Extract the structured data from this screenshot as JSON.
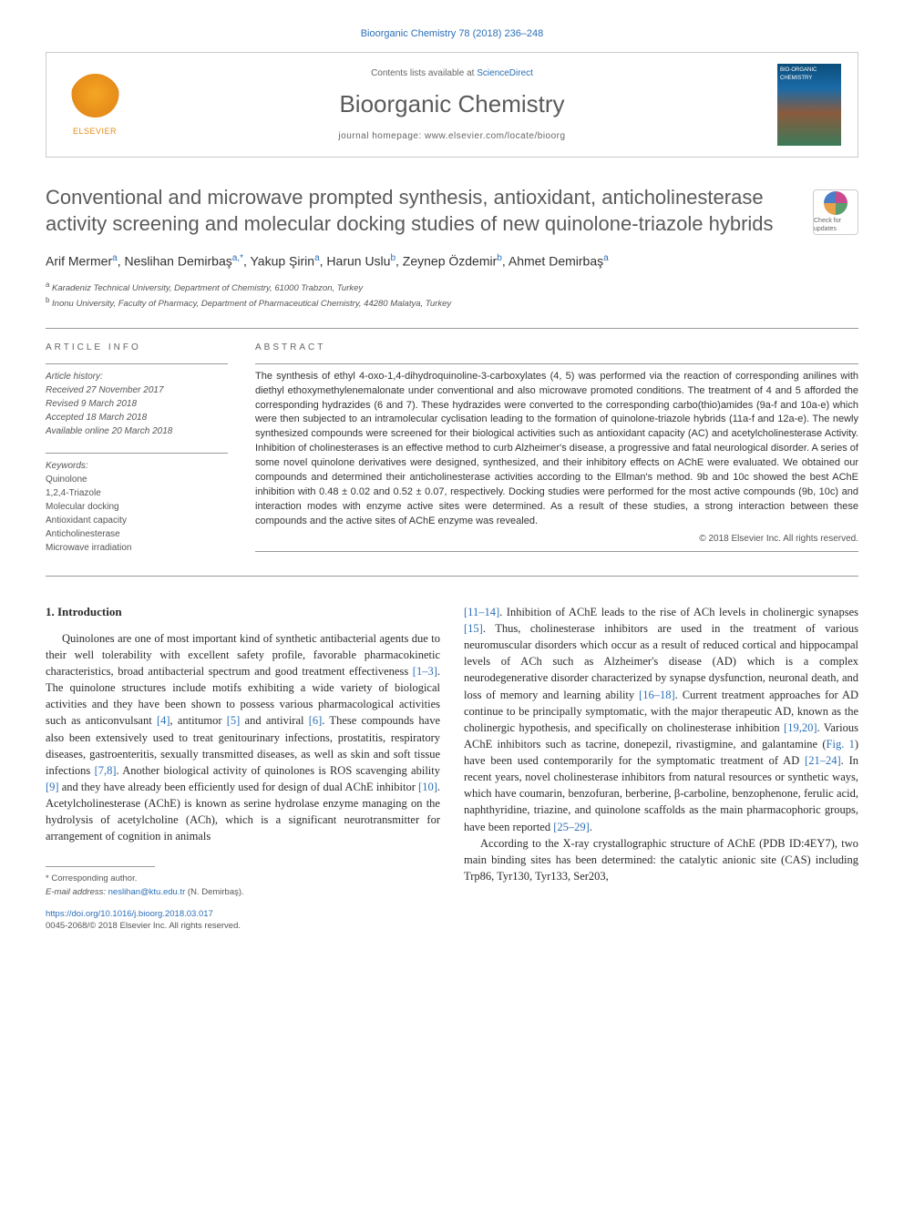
{
  "journal_ref": "Bioorganic Chemistry 78 (2018) 236–248",
  "header": {
    "contents_prefix": "Contents lists available at ",
    "contents_link": "ScienceDirect",
    "journal_name": "Bioorganic Chemistry",
    "homepage_prefix": "journal homepage: ",
    "homepage_url": "www.elsevier.com/locate/bioorg",
    "publisher": "ELSEVIER",
    "cover_text": "BIO-ORGANIC CHEMISTRY"
  },
  "check_badge": "Check for updates",
  "title": "Conventional and microwave prompted synthesis, antioxidant, anticholinesterase activity screening and molecular docking studies of new quinolone-triazole hybrids",
  "authors_html": "Arif Mermer<sup>a</sup>, Neslihan Demirbaş<sup>a,*</sup>, Yakup Şirin<sup>a</sup>, Harun Uslu<sup>b</sup>, Zeynep Özdemir<sup>b</sup>, Ahmet Demirbaş<sup>a</sup>",
  "affiliations": {
    "a": "Karadeniz Technical University, Department of Chemistry, 61000 Trabzon, Turkey",
    "b": "Inonu University, Faculty of Pharmacy, Department of Pharmaceutical Chemistry, 44280 Malatya, Turkey"
  },
  "info": {
    "heading": "ARTICLE INFO",
    "history_label": "Article history:",
    "received": "Received 27 November 2017",
    "revised": "Revised 9 March 2018",
    "accepted": "Accepted 18 March 2018",
    "online": "Available online 20 March 2018",
    "keywords_label": "Keywords:",
    "keywords": [
      "Quinolone",
      "1,2,4-Triazole",
      "Molecular docking",
      "Antioxidant capacity",
      "Anticholinesterase",
      "Microwave irradiation"
    ]
  },
  "abstract": {
    "heading": "ABSTRACT",
    "text": "The synthesis of ethyl 4-oxo-1,4-dihydroquinoline-3-carboxylates (4, 5) was performed via the reaction of corresponding anilines with diethyl ethoxymethylenemalonate under conventional and also microwave promoted conditions. The treatment of 4 and 5 afforded the corresponding hydrazides (6 and 7). These hydrazides were converted to the corresponding carbo(thio)amides (9a-f and 10a-e) which were then subjected to an intramolecular cyclisation leading to the formation of quinolone-triazole hybrids (11a-f and 12a-e). The newly synthesized compounds were screened for their biological activities such as antioxidant capacity (AC) and acetylcholinesterase Activity. Inhibition of cholinesterases is an effective method to curb Alzheimer's disease, a progressive and fatal neurological disorder. A series of some novel quinolone derivatives were designed, synthesized, and their inhibitory effects on AChE were evaluated. We obtained our compounds and determined their anticholinesterase activities according to the Ellman's method. 9b and 10c showed the best AChE inhibition with 0.48 ± 0.02 and 0.52 ± 0.07, respectively. Docking studies were performed for the most active compounds (9b, 10c) and interaction modes with enzyme active sites were determined. As a result of these studies, a strong interaction between these compounds and the active sites of AChE enzyme was revealed.",
    "copyright": "© 2018 Elsevier Inc. All rights reserved."
  },
  "body": {
    "section_heading": "1. Introduction",
    "col1_p1": "Quinolones are one of most important kind of synthetic antibacterial agents due to their well tolerability with excellent safety profile, favorable pharmacokinetic characteristics, broad antibacterial spectrum and good treatment effectiveness [1–3]. The quinolone structures include motifs exhibiting a wide variety of biological activities and they have been shown to possess various pharmacological activities such as anticonvulsant [4], antitumor [5] and antiviral [6]. These compounds have also been extensively used to treat genitourinary infections, prostatitis, respiratory diseases, gastroenteritis, sexually transmitted diseases, as well as skin and soft tissue infections [7,8]. Another biological activity of quinolones is ROS scavenging ability [9] and they have already been efficiently used for design of dual AChE inhibitor [10]. Acetylcholinesterase (AChE) is known as serine hydrolase enzyme managing on the hydrolysis of acetylcholine (ACh), which is a significant neurotransmitter for arrangement of cognition in animals",
    "col2_p1": "[11–14]. Inhibition of AChE leads to the rise of ACh levels in cholinergic synapses [15]. Thus, cholinesterase inhibitors are used in the treatment of various neuromuscular disorders which occur as a result of reduced cortical and hippocampal levels of ACh such as Alzheimer's disease (AD) which is a complex neurodegenerative disorder characterized by synapse dysfunction, neuronal death, and loss of memory and learning ability [16–18]. Current treatment approaches for AD continue to be principally symptomatic, with the major therapeutic AD, known as the cholinergic hypothesis, and specifically on cholinesterase inhibition [19,20]. Various AChE inhibitors such as tacrine, donepezil, rivastigmine, and galantamine (Fig. 1) have been used contemporarily for the symptomatic treatment of AD [21–24]. In recent years, novel cholinesterase inhibitors from natural resources or synthetic ways, which have coumarin, benzofuran, berberine, β-carboline, benzophenone, ferulic acid, naphthyridine, triazine, and quinolone scaffolds as the main pharmacophoric groups, have been reported [25–29].",
    "col2_p2": "According to the X-ray crystallographic structure of AChE (PDB ID:4EY7), two main binding sites has been determined: the catalytic anionic site (CAS) including Trp86, Tyr130, Tyr133, Ser203,"
  },
  "footnote": {
    "corresponding": "* Corresponding author.",
    "email_label": "E-mail address: ",
    "email": "neslihan@ktu.edu.tr",
    "email_name": " (N. Demirbaş)."
  },
  "doi": {
    "url": "https://doi.org/10.1016/j.bioorg.2018.03.017",
    "issn_line": "0045-2068/© 2018 Elsevier Inc. All rights reserved."
  },
  "colors": {
    "link": "#2c6fb7",
    "text": "#333333",
    "heading_gray": "#5a5a5a",
    "elsevier_orange": "#e58b1a"
  }
}
